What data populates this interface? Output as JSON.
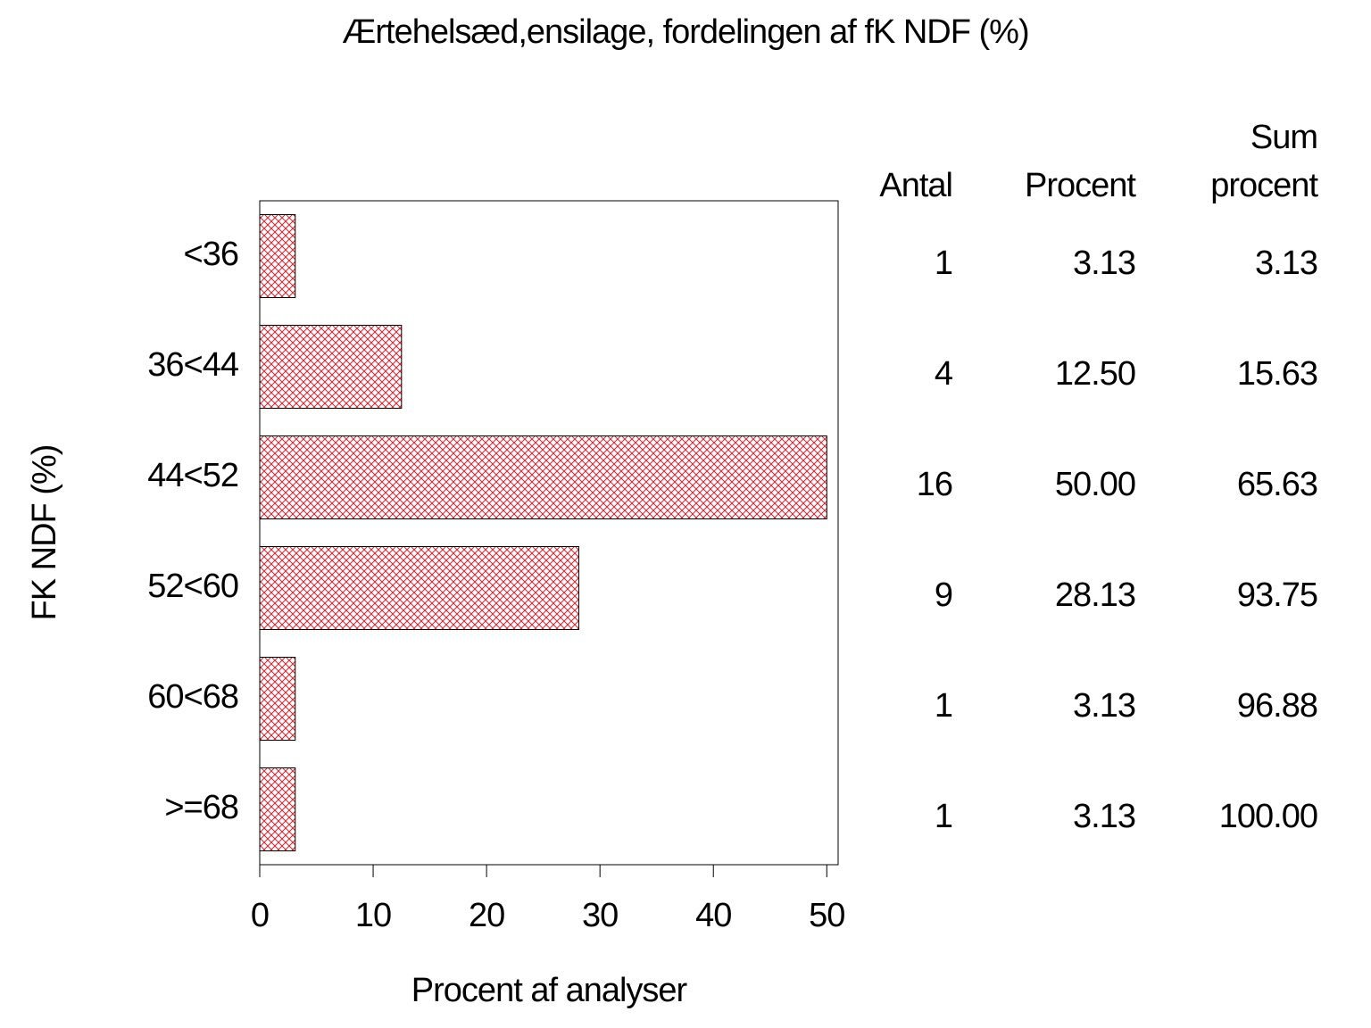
{
  "chart_data": {
    "type": "bar",
    "orientation": "horizontal",
    "title": "Ærtehelsæd,ensilage, fordelingen af fK NDF (%)",
    "x_label": "Procent af analyser",
    "y_label": "FK NDF (%)",
    "categories": [
      "<36",
      "36<44",
      "44<52",
      "52<60",
      "60<68",
      ">=68"
    ],
    "values": [
      3.13,
      12.5,
      50,
      28.13,
      3.13,
      3.13
    ],
    "value_labels": [
      "3.13",
      "12.50",
      "50.00",
      "28.13",
      "3.13",
      "3.13"
    ],
    "color": "#e0202a",
    "xlim": [
      0,
      51
    ],
    "xticks": [
      0,
      10,
      20,
      30,
      40,
      50
    ],
    "table": {
      "count_header": "Antal",
      "percent_header": "Procent",
      "cumulative_header": [
        "Sum",
        "procent"
      ],
      "counts": [
        1,
        4,
        16,
        9,
        1,
        1
      ],
      "cumulative": [
        "3.13",
        "15.63",
        "65.63",
        "93.75",
        "96.88",
        "100.00"
      ]
    }
  }
}
